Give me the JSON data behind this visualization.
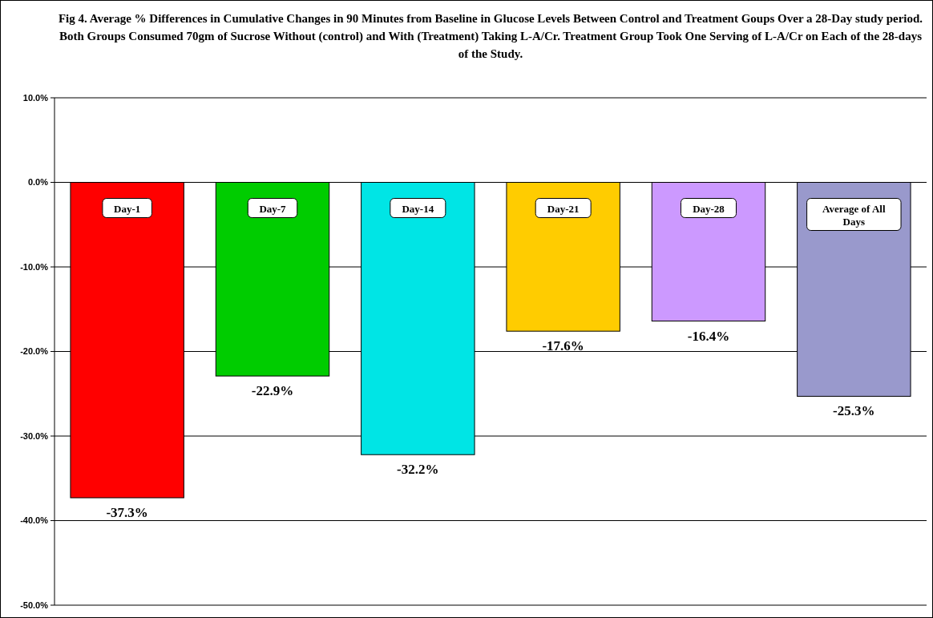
{
  "chart_data": {
    "type": "bar",
    "title": "Fig 4. Average % Differences in Cumulative Changes in 90 Minutes from Baseline in Glucose Levels Between Control and Treatment Goups Over a 28-Day study period.  Both Groups Consumed 70gm of Sucrose Without (control) and With (Treatment) Taking L-A/Cr. Treatment Group Took One Serving of L-A/Cr on Each of the 28-days of the Study.",
    "categories": [
      "Day-1",
      "Day-7",
      "Day-14",
      "Day-21",
      "Day-28",
      "Average of All Days"
    ],
    "values": [
      -37.3,
      -22.9,
      -32.2,
      -17.6,
      -16.4,
      -25.3
    ],
    "colors": [
      "#ff0000",
      "#00cc00",
      "#00e5e5",
      "#ffcc00",
      "#cc99ff",
      "#9999cc"
    ],
    "value_labels": [
      "-37.3%",
      "-22.9%",
      "-32.2%",
      "-17.6%",
      "-16.4%",
      "-25.3%"
    ],
    "ylim": [
      -50,
      10
    ],
    "yticks": [
      {
        "value": 10,
        "label": "10.0%"
      },
      {
        "value": 0,
        "label": "0.0%"
      },
      {
        "value": -10,
        "label": "-10.0%"
      },
      {
        "value": -20,
        "label": "-20.0%"
      },
      {
        "value": -30,
        "label": "-30.0%"
      },
      {
        "value": -40,
        "label": "-40.0%"
      },
      {
        "value": -50,
        "label": "-50.0%"
      }
    ],
    "grid": "y"
  }
}
